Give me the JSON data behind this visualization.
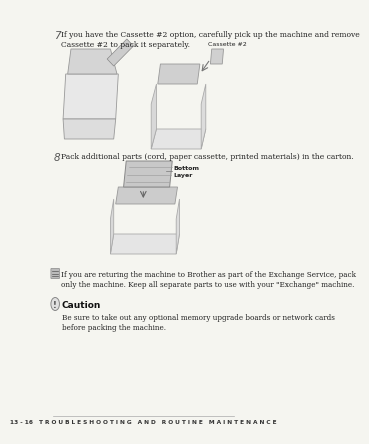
{
  "bg_color": "#f5f5f0",
  "page_bg": "#f5f5f0",
  "step7_number": "7",
  "step7_text": "If you have the Cassette #2 option, carefully pick up the machine and remove\nCassette #2 to pack it separately.",
  "step8_number": "8",
  "step8_text": "Pack additional parts (cord, paper cassette, printed materials) in the carton.",
  "cassette_label": "Cassette #2",
  "bottom_layer_label": "Bottom\nLayer",
  "note_text": "If you are returing the machine to Brother as part of the Exchange Service, pack\nonly the machine. Keep all separate parts to use with your \"Exchange\" machine.",
  "caution_title": "Caution",
  "caution_text": "Be sure to take out any optional memory upgrade boards or network cards\nbefore packing the machine.",
  "footer_text": "13 - 16   T R O U B L E S H O O T I N G   A N D   R O U T I N E   M A I N T E N A N C E",
  "text_color": "#222222",
  "footer_color": "#333333",
  "step_num_color": "#555555",
  "caution_bold_color": "#111111"
}
